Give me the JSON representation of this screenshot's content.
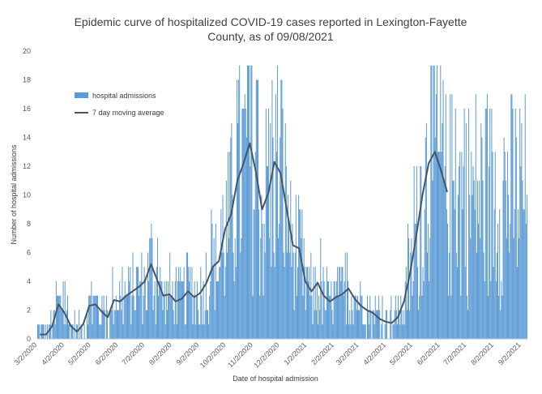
{
  "chart_data": {
    "type": "bar",
    "title": "Epidemic curve of hospitalized COVID-19 cases reported in Lexington-Fayette County, as of 09/08/2021",
    "title_lines": [
      "Epidemic curve of hospitalized COVID-19 cases reported in Lexington-Fayette",
      "County, as of 09/08/2021"
    ],
    "xlabel": "Date of hospital admission",
    "ylabel": "Number of hospital admissions",
    "ylim": [
      0,
      20
    ],
    "yticks": [
      0,
      2,
      4,
      6,
      8,
      10,
      12,
      14,
      16,
      18,
      20
    ],
    "xlim": [
      "2020-03-02",
      "2021-09-08"
    ],
    "xtick_labels": [
      "3/2/2020",
      "4/2/2020",
      "5/2/2020",
      "6/2/2020",
      "7/2/2020",
      "8/2/2020",
      "9/2/2020",
      "10/2/2020",
      "11/2/2020",
      "12/2/2020",
      "1/2/2021",
      "2/2/2021",
      "3/2/2021",
      "4/2/2021",
      "5/2/2021",
      "6/2/2021",
      "7/2/2021",
      "8/2/2021",
      "9/2/2021"
    ],
    "grid": false,
    "legend_position": "top-left",
    "colors": {
      "bars": "#5b9bd5",
      "moving_average": "#44546a"
    },
    "series": [
      {
        "name": "hospital admissions",
        "kind": "bar",
        "weekly_mean_values": [
          0.5,
          0.3,
          1.0,
          2.4,
          1.8,
          0.9,
          0.5,
          1.0,
          2.2,
          2.6,
          1.9,
          1.4,
          2.8,
          2.6,
          3.0,
          3.3,
          3.6,
          4.0,
          5.0,
          4.2,
          3.0,
          3.2,
          2.6,
          2.8,
          3.3,
          2.9,
          3.2,
          3.9,
          5.0,
          5.5,
          7.5,
          8.5,
          11.0,
          12.0,
          13.0,
          11.5,
          9.0,
          10.0,
          12.0,
          11.5,
          9.0,
          6.5,
          5.5,
          4.0,
          3.2,
          3.8,
          3.0,
          2.6,
          2.8,
          3.0,
          3.4,
          2.8,
          2.4,
          2.0,
          1.8,
          1.5,
          1.2,
          1.0,
          1.5,
          2.5,
          4.5,
          7.0,
          10.0,
          12.0,
          12.5,
          11.5,
          10.0
        ]
      },
      {
        "name": "7 day moving average",
        "kind": "line",
        "values": [
          0.3,
          0.3,
          0.9,
          2.4,
          1.8,
          0.9,
          0.5,
          1.0,
          2.3,
          2.4,
          1.9,
          1.5,
          2.7,
          2.6,
          3.0,
          3.3,
          3.6,
          4.0,
          5.2,
          4.1,
          3.0,
          3.1,
          2.6,
          2.8,
          3.3,
          2.9,
          3.2,
          3.9,
          5.0,
          5.4,
          7.6,
          8.7,
          11.0,
          12.2,
          13.6,
          11.6,
          9.0,
          10.1,
          12.3,
          11.5,
          9.0,
          6.5,
          6.3,
          4.0,
          3.3,
          3.9,
          3.0,
          2.6,
          2.9,
          3.1,
          3.5,
          2.8,
          2.3,
          2.0,
          1.8,
          1.4,
          1.2,
          1.1,
          1.5,
          2.6,
          4.6,
          7.2,
          10.0,
          12.2,
          13.0,
          11.7,
          10.2
        ]
      }
    ]
  }
}
